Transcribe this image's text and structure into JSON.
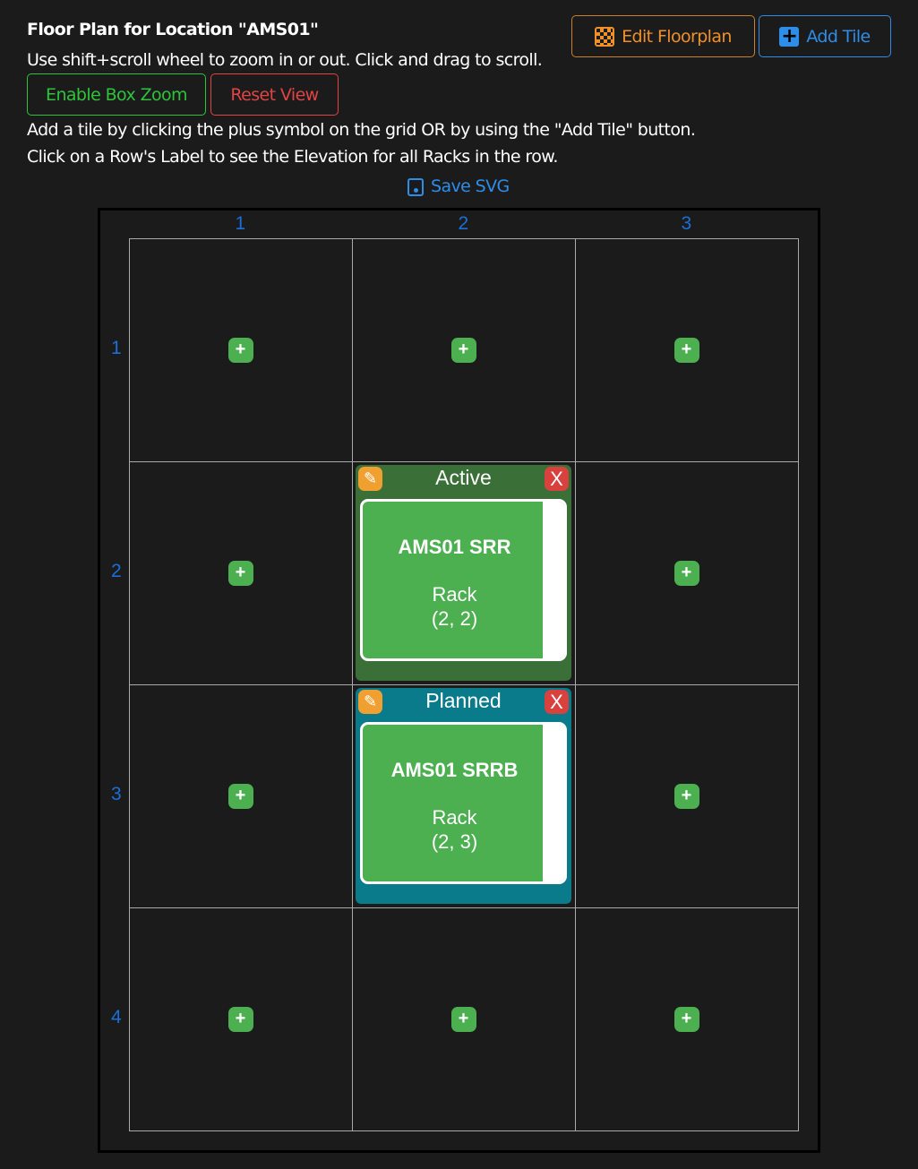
{
  "header": {
    "title": "Floor Plan for Location \"AMS01\"",
    "help1": "Use shift+scroll wheel to zoom in or out. Click and drag to scroll.",
    "help2": "Add a tile by clicking the plus symbol on the grid OR by using the \"Add Tile\" button.",
    "help3": "Click on a Row's Label to see the Elevation for all Racks in the row."
  },
  "buttons": {
    "edit_floorplan": "Edit Floorplan",
    "add_tile": "Add Tile",
    "box_zoom": "Enable Box Zoom",
    "reset_view": "Reset View",
    "save_svg": "Save SVG"
  },
  "colors": {
    "orange": "#f0902a",
    "blue": "#2e8de8",
    "green": "#2ec43a",
    "red": "#e04444",
    "active": "#3a7038",
    "planned": "#0a7b8a",
    "rack": "#4caf50"
  },
  "grid": {
    "columns": [
      "1",
      "2",
      "3"
    ],
    "rows": [
      "1",
      "2",
      "3",
      "4"
    ]
  },
  "tiles": [
    {
      "col": 2,
      "row": 2,
      "status": "Active",
      "name": "AMS01 SRR",
      "type": "Rack",
      "coords": "(2, 2)"
    },
    {
      "col": 2,
      "row": 3,
      "status": "Planned",
      "name": "AMS01 SRRB",
      "type": "Rack",
      "coords": "(2, 3)"
    }
  ],
  "icons": {
    "plus": "+",
    "delete": "X",
    "edit": "✎"
  }
}
